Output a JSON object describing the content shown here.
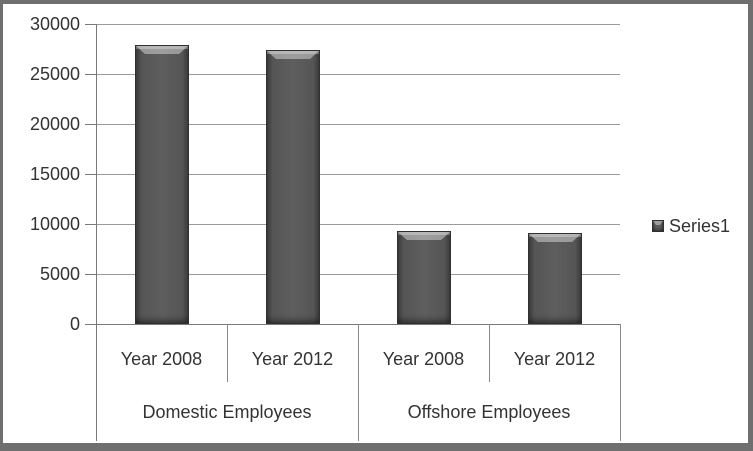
{
  "window": {
    "background": "#ffffff",
    "frame_color": "#6f6f6f"
  },
  "legend": {
    "label": "Series1",
    "position": "right"
  },
  "chart_data": {
    "type": "bar",
    "title": "",
    "xlabel": "",
    "ylabel": "",
    "series": [
      {
        "name": "Series1",
        "values": [
          27900,
          27400,
          9300,
          9100
        ]
      }
    ],
    "categories": [
      "Year 2008",
      "Year 2012",
      "Year 2008",
      "Year 2012"
    ],
    "category_groups": [
      {
        "label": "Domestic Employees",
        "items": [
          "Year 2008",
          "Year 2012"
        ]
      },
      {
        "label": "Offshore Employees",
        "items": [
          "Year 2008",
          "Year 2012"
        ]
      }
    ],
    "y_axis": {
      "min": 0,
      "max": 30000,
      "step": 5000,
      "tick_labels": [
        "0",
        "5000",
        "10000",
        "15000",
        "20000",
        "25000",
        "30000"
      ]
    },
    "grid": true,
    "legend_position": "right",
    "colors": {
      "bar_body": "#555555",
      "bar_highlight": "#a8a8a8",
      "bar_outline": "#303030",
      "gridline": "#9a9a9a",
      "axis": "#787878",
      "text": "#333333"
    }
  }
}
